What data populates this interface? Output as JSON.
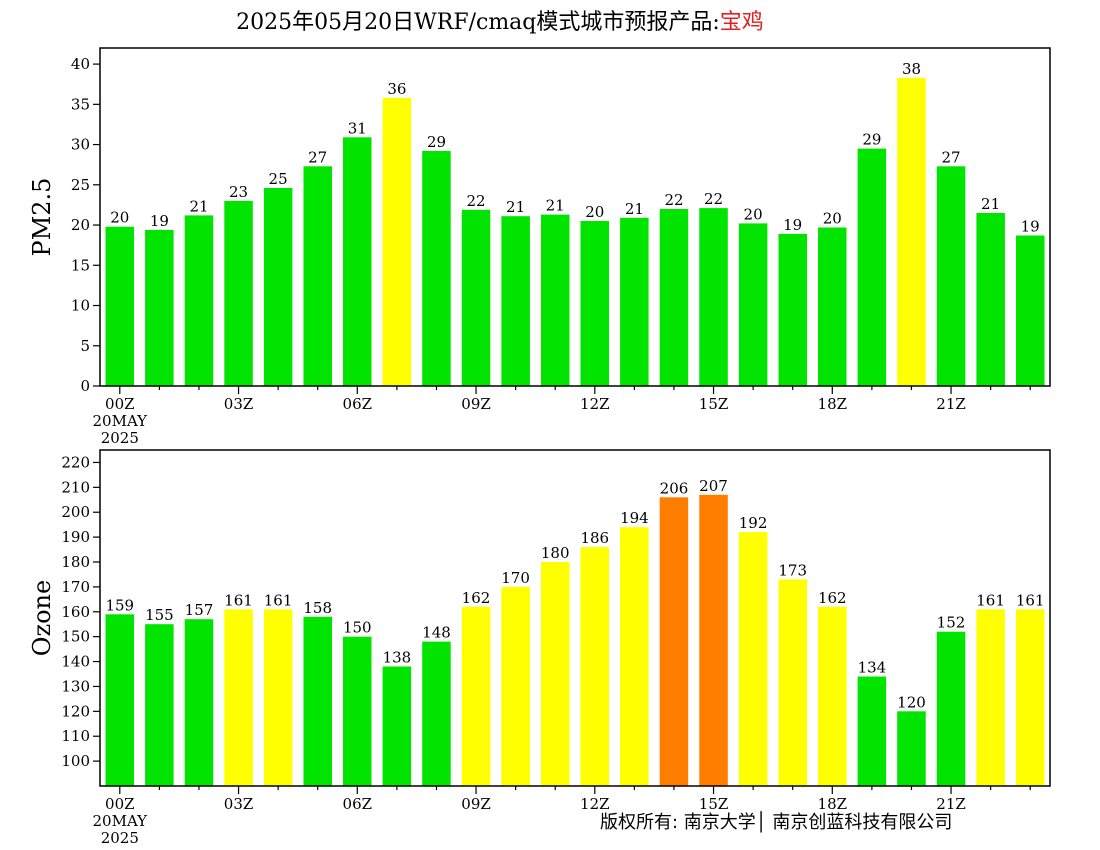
{
  "header": {
    "title_prefix": "2025年05月20日WRF/cmaq模式城市预报产品:",
    "city": "宝鸡"
  },
  "footer": {
    "copyright": "版权所有: 南京大学│ 南京创蓝科技有限公司"
  },
  "colors": {
    "green": "#00e400",
    "yellow": "#ffff00",
    "orange": "#ff7e00"
  },
  "chart_data": [
    {
      "type": "bar",
      "ylabel": "PM2.5",
      "ylim": [
        0,
        42
      ],
      "yticks": [
        0,
        5,
        10,
        15,
        20,
        25,
        30,
        35,
        40
      ],
      "xtick_labels": [
        {
          "index": 0,
          "lines": [
            "00Z",
            "20MAY",
            "2025"
          ]
        },
        {
          "index": 3,
          "lines": [
            "03Z"
          ]
        },
        {
          "index": 6,
          "lines": [
            "06Z"
          ]
        },
        {
          "index": 9,
          "lines": [
            "09Z"
          ]
        },
        {
          "index": 12,
          "lines": [
            "12Z"
          ]
        },
        {
          "index": 15,
          "lines": [
            "15Z"
          ]
        },
        {
          "index": 18,
          "lines": [
            "18Z"
          ]
        },
        {
          "index": 21,
          "lines": [
            "21Z"
          ]
        }
      ],
      "values": [
        19.8,
        19.4,
        21.2,
        23,
        24.6,
        27.3,
        30.9,
        35.8,
        29.2,
        21.9,
        21.1,
        21.3,
        20.5,
        20.9,
        22,
        22.1,
        20.2,
        18.9,
        19.7,
        29.5,
        38.3,
        27.3,
        21.5,
        18.7
      ],
      "labels": [
        "20",
        "19",
        "21",
        "23",
        "25",
        "27",
        "31",
        "36",
        "29",
        "22",
        "21",
        "21",
        "20",
        "21",
        "22",
        "22",
        "20",
        "19",
        "20",
        "29",
        "38",
        "27",
        "21",
        "19"
      ],
      "levels": [
        "green",
        "green",
        "green",
        "green",
        "green",
        "green",
        "green",
        "yellow",
        "green",
        "green",
        "green",
        "green",
        "green",
        "green",
        "green",
        "green",
        "green",
        "green",
        "green",
        "green",
        "yellow",
        "green",
        "green",
        "green"
      ]
    },
    {
      "type": "bar",
      "ylabel": "Ozone",
      "ylim": [
        90,
        225
      ],
      "yticks": [
        100,
        110,
        120,
        130,
        140,
        150,
        160,
        170,
        180,
        190,
        200,
        210,
        220
      ],
      "xtick_labels": [
        {
          "index": 0,
          "lines": [
            "00Z",
            "20MAY",
            "2025"
          ]
        },
        {
          "index": 3,
          "lines": [
            "03Z"
          ]
        },
        {
          "index": 6,
          "lines": [
            "06Z"
          ]
        },
        {
          "index": 9,
          "lines": [
            "09Z"
          ]
        },
        {
          "index": 12,
          "lines": [
            "12Z"
          ]
        },
        {
          "index": 15,
          "lines": [
            "15Z"
          ]
        },
        {
          "index": 18,
          "lines": [
            "18Z"
          ]
        },
        {
          "index": 21,
          "lines": [
            "21Z"
          ]
        }
      ],
      "values": [
        159,
        155,
        157,
        161,
        161,
        158,
        150,
        138,
        148,
        162,
        170,
        180,
        186,
        194,
        206,
        207,
        192,
        173,
        162,
        134,
        120,
        152,
        161,
        161
      ],
      "labels": [
        "159",
        "155",
        "157",
        "161",
        "161",
        "158",
        "150",
        "138",
        "148",
        "162",
        "170",
        "180",
        "186",
        "194",
        "206",
        "207",
        "192",
        "173",
        "162",
        "134",
        "120",
        "152",
        "161",
        "161"
      ],
      "levels": [
        "green",
        "green",
        "green",
        "yellow",
        "yellow",
        "green",
        "green",
        "green",
        "green",
        "yellow",
        "yellow",
        "yellow",
        "yellow",
        "yellow",
        "orange",
        "orange",
        "yellow",
        "yellow",
        "yellow",
        "green",
        "green",
        "green",
        "yellow",
        "yellow"
      ]
    }
  ]
}
